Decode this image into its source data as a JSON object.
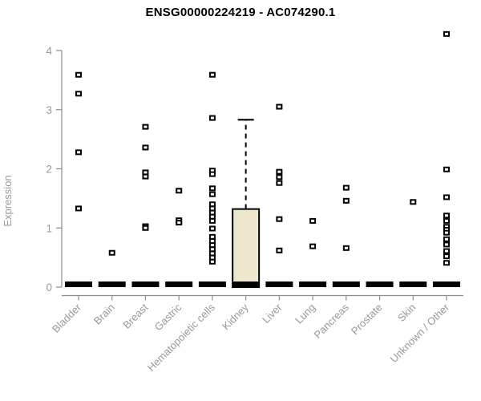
{
  "title": "ENSG00000224219 - AC074290.1",
  "colors": {
    "background": "#ffffff",
    "axis_line": "#8c8c8c",
    "axis_text": "#999999",
    "data_color": "#000000",
    "box_fill": "#ece7cd",
    "title_color": "#000000"
  },
  "chart_data": {
    "type": "boxplot",
    "title": "ENSG00000224219 - AC074290.1",
    "xlabel": "",
    "ylabel": "Expression",
    "ylim": [
      0,
      4.3
    ],
    "yticks": [
      0,
      1,
      2,
      3,
      4
    ],
    "grid": false,
    "legend": "none",
    "categories": [
      "Bladder",
      "Brain",
      "Breast",
      "Gastric",
      "Hematopoietic cells",
      "Kidney",
      "Liver",
      "Lung",
      "Pancreas",
      "Prostate",
      "Skin",
      "Unknown / Other"
    ],
    "series": [
      {
        "category": "Bladder",
        "box": {
          "q1": 0,
          "median": 0,
          "q3": 0
        },
        "points": [
          3.59,
          3.27,
          2.28,
          1.33
        ]
      },
      {
        "category": "Brain",
        "box": {
          "q1": 0,
          "median": 0,
          "q3": 0
        },
        "points": [
          0.58
        ]
      },
      {
        "category": "Breast",
        "box": {
          "q1": 0,
          "median": 0,
          "q3": 0
        },
        "points": [
          2.71,
          2.36,
          1.94,
          1.87,
          1.03,
          1.0
        ]
      },
      {
        "category": "Gastric",
        "box": {
          "q1": 0,
          "median": 0,
          "q3": 0
        },
        "points": [
          1.63,
          1.13,
          1.09
        ]
      },
      {
        "category": "Hematopoietic cells",
        "box": {
          "q1": 0,
          "median": 0,
          "q3": 0
        },
        "points": [
          3.59,
          2.86,
          1.97,
          1.91,
          1.67,
          1.57,
          1.4,
          1.33,
          1.26,
          1.19,
          1.12,
          0.99,
          0.85,
          0.78,
          0.71,
          0.64,
          0.57,
          0.5,
          0.43
        ]
      },
      {
        "category": "Kidney",
        "box": {
          "q1": 0,
          "median": 0,
          "q3": 1.32,
          "whisker_high": 2.83
        },
        "points": []
      },
      {
        "category": "Liver",
        "box": {
          "q1": 0,
          "median": 0,
          "q3": 0
        },
        "points": [
          3.05,
          1.95,
          1.86,
          1.76,
          1.15,
          0.62
        ]
      },
      {
        "category": "Lung",
        "box": {
          "q1": 0,
          "median": 0,
          "q3": 0
        },
        "points": [
          1.12,
          0.69
        ]
      },
      {
        "category": "Pancreas",
        "box": {
          "q1": 0,
          "median": 0,
          "q3": 0
        },
        "points": [
          1.68,
          1.46,
          0.66
        ]
      },
      {
        "category": "Prostate",
        "box": {
          "q1": 0,
          "median": 0,
          "q3": 0
        },
        "points": []
      },
      {
        "category": "Skin",
        "box": {
          "q1": 0,
          "median": 0,
          "q3": 0
        },
        "points": [
          1.44
        ]
      },
      {
        "category": "Unknown / Other",
        "box": {
          "q1": 0,
          "median": 0,
          "q3": 0
        },
        "points": [
          4.28,
          1.99,
          1.52,
          1.21,
          1.12,
          1.02,
          0.97,
          0.92,
          0.81,
          0.72,
          0.61,
          0.52,
          0.41
        ]
      }
    ]
  }
}
